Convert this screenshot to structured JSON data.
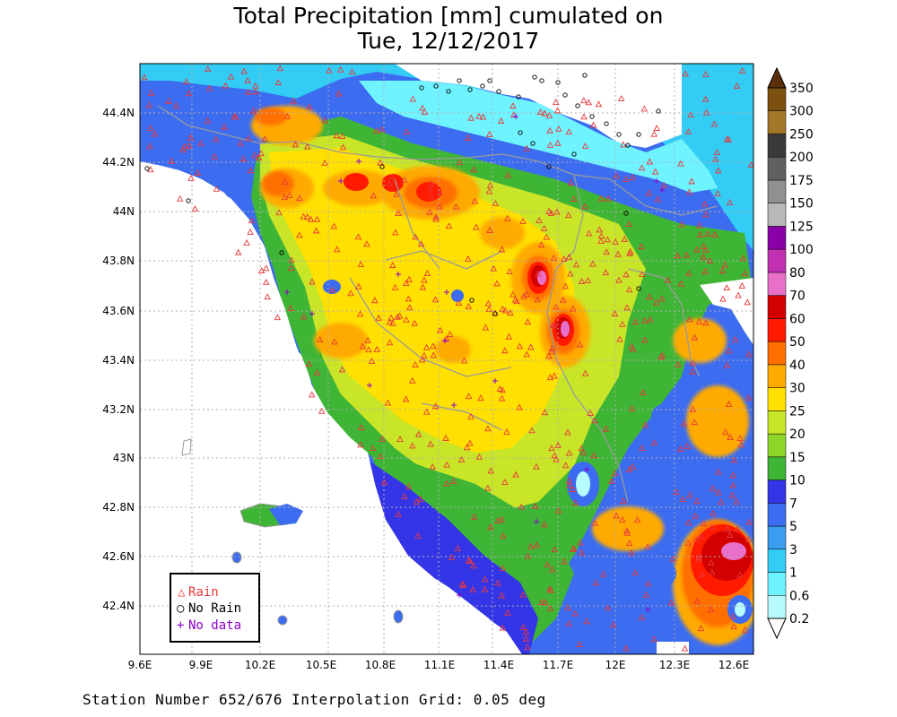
{
  "title": {
    "line1": "Total Precipitation [mm] cumulated on",
    "line2": "Tue, 12/12/2017"
  },
  "footer": "Station Number 652/676 Interpolation Grid: 0.05 deg",
  "axes": {
    "x_ticks": [
      "9.6E",
      "9.9E",
      "10.2E",
      "10.5E",
      "10.8E",
      "11.1E",
      "11.4E",
      "11.7E",
      "12E",
      "12.3E",
      "12.6E"
    ],
    "y_ticks": [
      "44.4N",
      "44.2N",
      "44N",
      "43.8N",
      "43.6N",
      "43.4N",
      "43.2N",
      "43N",
      "42.8N",
      "42.6N",
      "42.4N"
    ]
  },
  "legend": {
    "rain": {
      "label": "Rain",
      "symbol": "△",
      "color": "#e8383a"
    },
    "no_rain": {
      "label": "No Rain",
      "symbol": "○",
      "color": "#000000"
    },
    "no_data": {
      "label": "No data",
      "symbol": "+",
      "color": "#8a00c8"
    }
  },
  "colorbar": {
    "unit": "mm",
    "bins": [
      {
        "label": "0.2",
        "color": "#b8fbff"
      },
      {
        "label": "0.6",
        "color": "#6ff4ff"
      },
      {
        "label": "1",
        "color": "#33ccf5"
      },
      {
        "label": "3",
        "color": "#3a9df0"
      },
      {
        "label": "5",
        "color": "#3c6cf0"
      },
      {
        "label": "7",
        "color": "#3535e8"
      },
      {
        "label": "10",
        "color": "#3fb535"
      },
      {
        "label": "15",
        "color": "#8ed52a"
      },
      {
        "label": "20",
        "color": "#c9e528"
      },
      {
        "label": "25",
        "color": "#ffe000"
      },
      {
        "label": "30",
        "color": "#ffaa00"
      },
      {
        "label": "40",
        "color": "#ff7000"
      },
      {
        "label": "50",
        "color": "#ff1a00"
      },
      {
        "label": "60",
        "color": "#d20000"
      },
      {
        "label": "70",
        "color": "#e870c8"
      },
      {
        "label": "80",
        "color": "#c030b0"
      },
      {
        "label": "100",
        "color": "#8a00a8"
      },
      {
        "label": "125",
        "color": "#b8b8b8"
      },
      {
        "label": "150",
        "color": "#909090"
      },
      {
        "label": "175",
        "color": "#606060"
      },
      {
        "label": "200",
        "color": "#3a3a3a"
      },
      {
        "label": "250",
        "color": "#a07828"
      },
      {
        "label": "300",
        "color": "#7c5010"
      },
      {
        "label": "350",
        "color": "#5a3008"
      }
    ]
  },
  "colors": {
    "land_outline": "#9a9a9a",
    "grid": "#b0b0b0",
    "no_rain_area": "#ffffff"
  }
}
